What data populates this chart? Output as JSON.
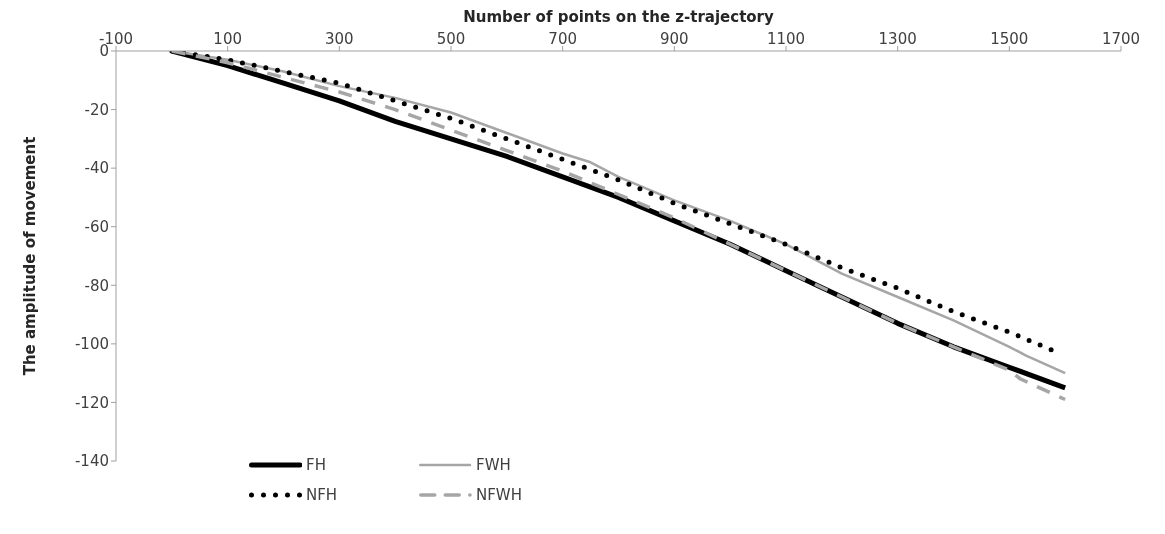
{
  "chart_data": {
    "type": "line",
    "xlabel": "Number of points on the z-trajectory",
    "ylabel": "The amplitude of movement",
    "xlim": [
      -100,
      1700
    ],
    "xticks": [
      -100,
      100,
      300,
      500,
      700,
      900,
      1100,
      1300,
      1500,
      1700
    ],
    "ylim": [
      -140,
      0
    ],
    "yticks": [
      0,
      -20,
      -40,
      -60,
      -80,
      -100,
      -120,
      -140
    ],
    "grid": false,
    "legend": "bottom left",
    "marker": "none",
    "series": [
      {
        "name": "FH",
        "color": "#000000",
        "line_style": "solid",
        "x": [
          0,
          100,
          200,
          300,
          400,
          500,
          600,
          700,
          800,
          900,
          1000,
          1100,
          1200,
          1300,
          1400,
          1500,
          1600
        ],
        "values": [
          0,
          -5,
          -11,
          -17,
          -24,
          -30,
          -36,
          -43,
          -50,
          -58,
          -66,
          -75,
          -84,
          -93,
          -101,
          -108,
          -115
        ]
      },
      {
        "name": "FWH",
        "color": "#a6a6a6",
        "line_style": "solid",
        "x": [
          0,
          100,
          200,
          300,
          400,
          500,
          600,
          700,
          750,
          800,
          900,
          1000,
          1100,
          1200,
          1300,
          1400,
          1500,
          1520,
          1530,
          1600
        ],
        "values": [
          0,
          -3,
          -7,
          -12,
          -16,
          -21,
          -28,
          -35,
          -38,
          -43,
          -51,
          -58,
          -66,
          -76,
          -84,
          -92,
          -101,
          -103,
          -104,
          -110
        ]
      },
      {
        "name": "NFH",
        "color": "#000000",
        "line_style": "dotted",
        "x": [
          0,
          100,
          200,
          300,
          400,
          500,
          600,
          700,
          800,
          900,
          1000,
          1100,
          1200,
          1300,
          1400,
          1500,
          1575
        ],
        "values": [
          0,
          -3,
          -7,
          -11,
          -17,
          -23,
          -30,
          -37,
          -44,
          -52,
          -59,
          -66,
          -74,
          -81,
          -89,
          -96,
          -102
        ]
      },
      {
        "name": "NFWH",
        "color": "#a6a6a6",
        "line_style": "dashed",
        "x": [
          0,
          100,
          200,
          300,
          400,
          500,
          600,
          700,
          800,
          900,
          1000,
          1100,
          1200,
          1300,
          1400,
          1500,
          1520,
          1600
        ],
        "values": [
          0,
          -4,
          -9,
          -14,
          -20,
          -27,
          -34,
          -41,
          -49,
          -57,
          -66,
          -75,
          -84,
          -93,
          -101,
          -109,
          -112,
          -119
        ]
      }
    ]
  }
}
